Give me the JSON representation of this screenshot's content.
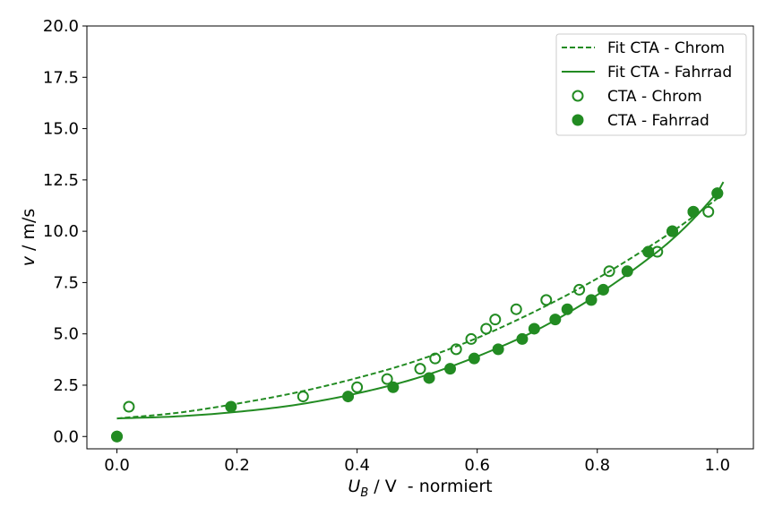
{
  "chart_data": {
    "type": "scatter",
    "title": "",
    "xlabel": {
      "symbol": "U",
      "subscript": "B",
      "rest": " / V  - normiert"
    },
    "ylabel": {
      "symbol": "v",
      "rest": " / m/s"
    },
    "xlim": [
      -0.05,
      1.06
    ],
    "ylim": [
      -0.6,
      20.0
    ],
    "xticks": [
      0.0,
      0.2,
      0.4,
      0.6,
      0.8,
      1.0
    ],
    "xtick_labels": [
      "0.0",
      "0.2",
      "0.4",
      "0.6",
      "0.8",
      "1.0"
    ],
    "yticks": [
      0.0,
      2.5,
      5.0,
      7.5,
      10.0,
      12.5,
      15.0,
      17.5,
      20.0
    ],
    "ytick_labels": [
      "0.0",
      "2.5",
      "5.0",
      "7.5",
      "10.0",
      "12.5",
      "15.0",
      "17.5",
      "20.0"
    ],
    "grid": false,
    "legend_position": "top-right",
    "color": "#228b22",
    "series": [
      {
        "name": "Fit CTA - Chrom",
        "kind": "line",
        "style": "dashed",
        "x": [
          0.0,
          0.1,
          0.2,
          0.3,
          0.4,
          0.5,
          0.6,
          0.7,
          0.8,
          0.9,
          0.95,
          1.0
        ],
        "y": [
          0.88,
          1.15,
          1.6,
          2.15,
          2.85,
          3.7,
          4.8,
          6.15,
          7.7,
          9.5,
          10.5,
          11.6
        ]
      },
      {
        "name": "Fit CTA - Fahrrad",
        "kind": "line",
        "style": "solid",
        "x": [
          0.0,
          0.1,
          0.2,
          0.3,
          0.4,
          0.5,
          0.6,
          0.7,
          0.8,
          0.9,
          0.95,
          1.0,
          1.01
        ],
        "y": [
          0.88,
          0.98,
          1.2,
          1.55,
          2.1,
          2.85,
          3.9,
          5.2,
          6.9,
          9.0,
          10.3,
          11.9,
          12.4
        ]
      },
      {
        "name": "CTA - Chrom",
        "kind": "points",
        "marker": "open",
        "x": [
          0.0,
          0.02,
          0.31,
          0.4,
          0.45,
          0.505,
          0.53,
          0.565,
          0.59,
          0.615,
          0.63,
          0.665,
          0.715,
          0.77,
          0.82,
          0.885,
          0.9,
          0.925,
          0.96,
          0.985,
          1.0
        ],
        "y": [
          0.0,
          1.45,
          1.95,
          2.4,
          2.8,
          3.3,
          3.8,
          4.25,
          4.75,
          5.25,
          5.7,
          6.2,
          6.65,
          7.15,
          8.05,
          9.0,
          9.0,
          10.0,
          10.95,
          10.95,
          11.85
        ]
      },
      {
        "name": "CTA - Fahrrad",
        "kind": "points",
        "marker": "filled",
        "x": [
          0.0,
          0.19,
          0.385,
          0.46,
          0.52,
          0.555,
          0.595,
          0.635,
          0.675,
          0.695,
          0.73,
          0.75,
          0.79,
          0.81,
          0.85,
          0.885,
          0.925,
          0.96,
          1.0
        ],
        "y": [
          0.0,
          1.45,
          1.95,
          2.4,
          2.85,
          3.3,
          3.8,
          4.25,
          4.75,
          5.25,
          5.7,
          6.2,
          6.65,
          7.15,
          8.05,
          9.0,
          10.0,
          10.95,
          11.85
        ]
      }
    ]
  }
}
